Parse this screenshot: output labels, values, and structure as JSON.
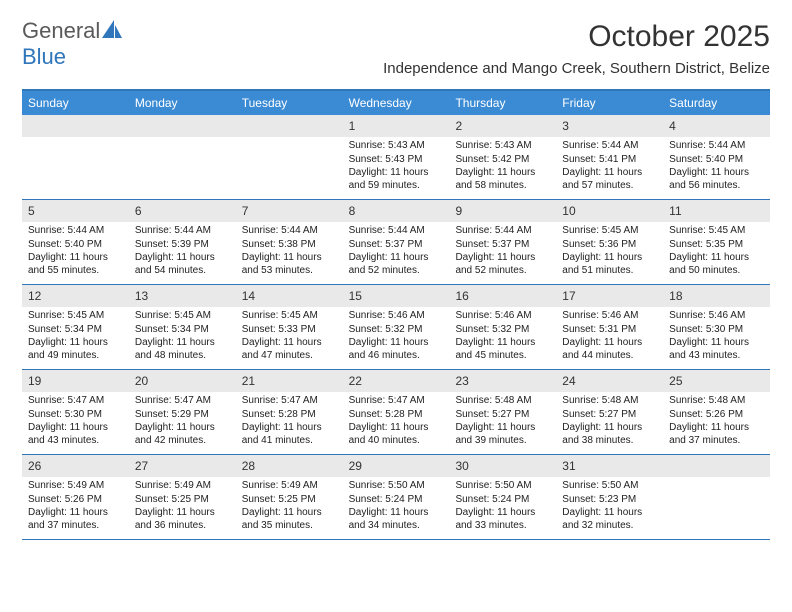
{
  "brand": {
    "part1": "General",
    "part2": "Blue",
    "text_color_1": "#5a5a5a",
    "text_color_2": "#2f76bb",
    "sail_color": "#2f76bb"
  },
  "title": "October 2025",
  "location": "Independence and Mango Creek, Southern District, Belize",
  "colors": {
    "accent": "#2f76bb",
    "header_bg": "#3b8bd4",
    "header_text": "#ffffff",
    "daynum_bg": "#e9e9e9",
    "body_text": "#222222",
    "page_bg": "#ffffff"
  },
  "fonts": {
    "month_title_size": 30,
    "location_size": 15,
    "dow_size": 12,
    "daynum_size": 12,
    "body_size": 10
  },
  "days_of_week": [
    "Sunday",
    "Monday",
    "Tuesday",
    "Wednesday",
    "Thursday",
    "Friday",
    "Saturday"
  ],
  "weeks": [
    [
      {
        "day": "",
        "sunrise": "",
        "sunset": "",
        "daylight": ""
      },
      {
        "day": "",
        "sunrise": "",
        "sunset": "",
        "daylight": ""
      },
      {
        "day": "",
        "sunrise": "",
        "sunset": "",
        "daylight": ""
      },
      {
        "day": "1",
        "sunrise": "Sunrise: 5:43 AM",
        "sunset": "Sunset: 5:43 PM",
        "daylight": "Daylight: 11 hours and 59 minutes."
      },
      {
        "day": "2",
        "sunrise": "Sunrise: 5:43 AM",
        "sunset": "Sunset: 5:42 PM",
        "daylight": "Daylight: 11 hours and 58 minutes."
      },
      {
        "day": "3",
        "sunrise": "Sunrise: 5:44 AM",
        "sunset": "Sunset: 5:41 PM",
        "daylight": "Daylight: 11 hours and 57 minutes."
      },
      {
        "day": "4",
        "sunrise": "Sunrise: 5:44 AM",
        "sunset": "Sunset: 5:40 PM",
        "daylight": "Daylight: 11 hours and 56 minutes."
      }
    ],
    [
      {
        "day": "5",
        "sunrise": "Sunrise: 5:44 AM",
        "sunset": "Sunset: 5:40 PM",
        "daylight": "Daylight: 11 hours and 55 minutes."
      },
      {
        "day": "6",
        "sunrise": "Sunrise: 5:44 AM",
        "sunset": "Sunset: 5:39 PM",
        "daylight": "Daylight: 11 hours and 54 minutes."
      },
      {
        "day": "7",
        "sunrise": "Sunrise: 5:44 AM",
        "sunset": "Sunset: 5:38 PM",
        "daylight": "Daylight: 11 hours and 53 minutes."
      },
      {
        "day": "8",
        "sunrise": "Sunrise: 5:44 AM",
        "sunset": "Sunset: 5:37 PM",
        "daylight": "Daylight: 11 hours and 52 minutes."
      },
      {
        "day": "9",
        "sunrise": "Sunrise: 5:44 AM",
        "sunset": "Sunset: 5:37 PM",
        "daylight": "Daylight: 11 hours and 52 minutes."
      },
      {
        "day": "10",
        "sunrise": "Sunrise: 5:45 AM",
        "sunset": "Sunset: 5:36 PM",
        "daylight": "Daylight: 11 hours and 51 minutes."
      },
      {
        "day": "11",
        "sunrise": "Sunrise: 5:45 AM",
        "sunset": "Sunset: 5:35 PM",
        "daylight": "Daylight: 11 hours and 50 minutes."
      }
    ],
    [
      {
        "day": "12",
        "sunrise": "Sunrise: 5:45 AM",
        "sunset": "Sunset: 5:34 PM",
        "daylight": "Daylight: 11 hours and 49 minutes."
      },
      {
        "day": "13",
        "sunrise": "Sunrise: 5:45 AM",
        "sunset": "Sunset: 5:34 PM",
        "daylight": "Daylight: 11 hours and 48 minutes."
      },
      {
        "day": "14",
        "sunrise": "Sunrise: 5:45 AM",
        "sunset": "Sunset: 5:33 PM",
        "daylight": "Daylight: 11 hours and 47 minutes."
      },
      {
        "day": "15",
        "sunrise": "Sunrise: 5:46 AM",
        "sunset": "Sunset: 5:32 PM",
        "daylight": "Daylight: 11 hours and 46 minutes."
      },
      {
        "day": "16",
        "sunrise": "Sunrise: 5:46 AM",
        "sunset": "Sunset: 5:32 PM",
        "daylight": "Daylight: 11 hours and 45 minutes."
      },
      {
        "day": "17",
        "sunrise": "Sunrise: 5:46 AM",
        "sunset": "Sunset: 5:31 PM",
        "daylight": "Daylight: 11 hours and 44 minutes."
      },
      {
        "day": "18",
        "sunrise": "Sunrise: 5:46 AM",
        "sunset": "Sunset: 5:30 PM",
        "daylight": "Daylight: 11 hours and 43 minutes."
      }
    ],
    [
      {
        "day": "19",
        "sunrise": "Sunrise: 5:47 AM",
        "sunset": "Sunset: 5:30 PM",
        "daylight": "Daylight: 11 hours and 43 minutes."
      },
      {
        "day": "20",
        "sunrise": "Sunrise: 5:47 AM",
        "sunset": "Sunset: 5:29 PM",
        "daylight": "Daylight: 11 hours and 42 minutes."
      },
      {
        "day": "21",
        "sunrise": "Sunrise: 5:47 AM",
        "sunset": "Sunset: 5:28 PM",
        "daylight": "Daylight: 11 hours and 41 minutes."
      },
      {
        "day": "22",
        "sunrise": "Sunrise: 5:47 AM",
        "sunset": "Sunset: 5:28 PM",
        "daylight": "Daylight: 11 hours and 40 minutes."
      },
      {
        "day": "23",
        "sunrise": "Sunrise: 5:48 AM",
        "sunset": "Sunset: 5:27 PM",
        "daylight": "Daylight: 11 hours and 39 minutes."
      },
      {
        "day": "24",
        "sunrise": "Sunrise: 5:48 AM",
        "sunset": "Sunset: 5:27 PM",
        "daylight": "Daylight: 11 hours and 38 minutes."
      },
      {
        "day": "25",
        "sunrise": "Sunrise: 5:48 AM",
        "sunset": "Sunset: 5:26 PM",
        "daylight": "Daylight: 11 hours and 37 minutes."
      }
    ],
    [
      {
        "day": "26",
        "sunrise": "Sunrise: 5:49 AM",
        "sunset": "Sunset: 5:26 PM",
        "daylight": "Daylight: 11 hours and 37 minutes."
      },
      {
        "day": "27",
        "sunrise": "Sunrise: 5:49 AM",
        "sunset": "Sunset: 5:25 PM",
        "daylight": "Daylight: 11 hours and 36 minutes."
      },
      {
        "day": "28",
        "sunrise": "Sunrise: 5:49 AM",
        "sunset": "Sunset: 5:25 PM",
        "daylight": "Daylight: 11 hours and 35 minutes."
      },
      {
        "day": "29",
        "sunrise": "Sunrise: 5:50 AM",
        "sunset": "Sunset: 5:24 PM",
        "daylight": "Daylight: 11 hours and 34 minutes."
      },
      {
        "day": "30",
        "sunrise": "Sunrise: 5:50 AM",
        "sunset": "Sunset: 5:24 PM",
        "daylight": "Daylight: 11 hours and 33 minutes."
      },
      {
        "day": "31",
        "sunrise": "Sunrise: 5:50 AM",
        "sunset": "Sunset: 5:23 PM",
        "daylight": "Daylight: 11 hours and 32 minutes."
      },
      {
        "day": "",
        "sunrise": "",
        "sunset": "",
        "daylight": ""
      }
    ]
  ]
}
